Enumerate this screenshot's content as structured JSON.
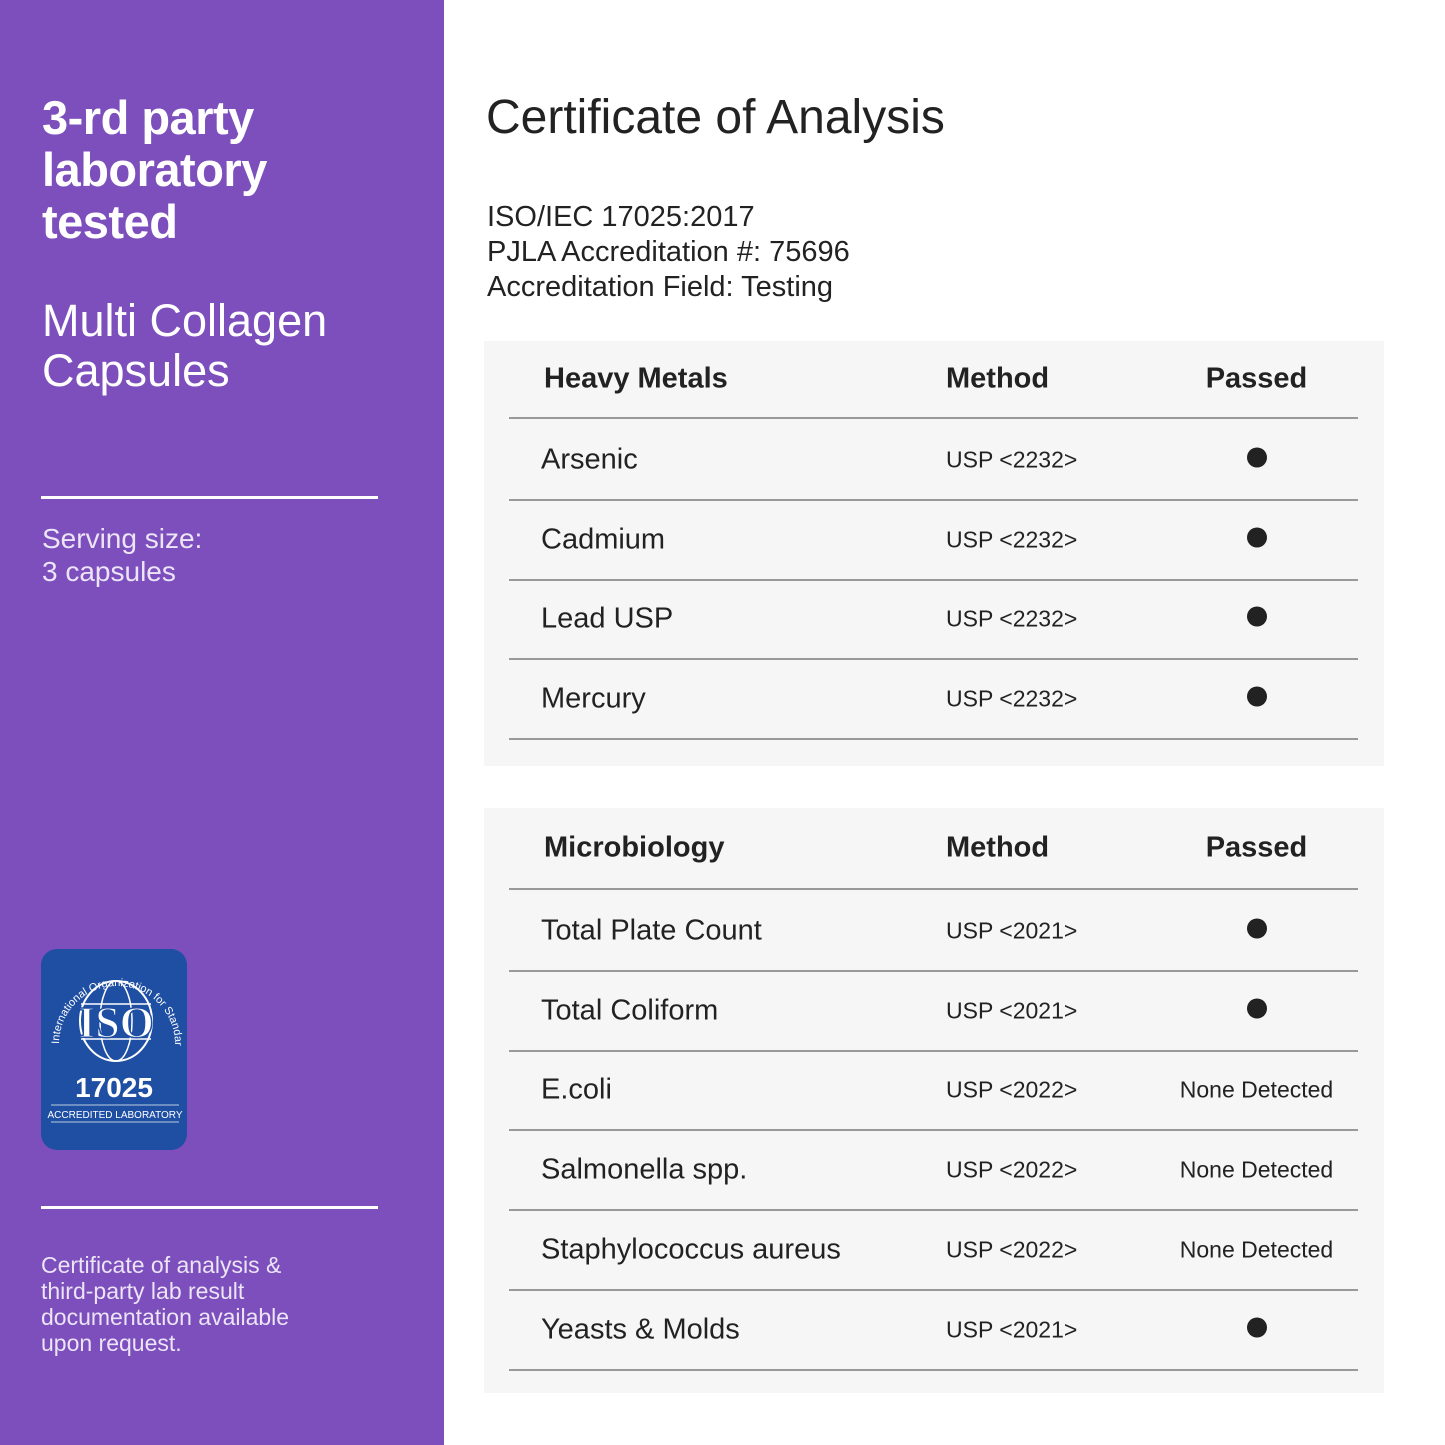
{
  "sidebar": {
    "headline": "3-rd party laboratory tested",
    "product": "Multi Collagen Capsules",
    "serving_label": "Serving size:",
    "serving_value": "3 capsules",
    "footer": "Certificate of analysis & third-party lab result documentation available upon request.",
    "badge": {
      "ring_text": "International Organization for Standardization",
      "logo": "ISO",
      "number": "17025",
      "caption": "ACCREDITED LABORATORY"
    }
  },
  "main": {
    "title": "Certificate of Analysis",
    "accreditation": [
      "ISO/IEC 17025:2017",
      "PJLA Accreditation #: 75696",
      "Accreditation Field: Testing"
    ],
    "tables": [
      {
        "headers": [
          "Heavy Metals",
          "Method",
          "Passed"
        ],
        "rows": [
          {
            "name": "Arsenic",
            "method": "USP <2232>",
            "result": "passed-dot"
          },
          {
            "name": "Cadmium",
            "method": "USP <2232>",
            "result": "passed-dot"
          },
          {
            "name": "Lead USP",
            "method": "USP <2232>",
            "result": "passed-dot"
          },
          {
            "name": "Mercury",
            "method": "USP <2232>",
            "result": "passed-dot"
          }
        ]
      },
      {
        "headers": [
          "Microbiology",
          "Method",
          "Passed"
        ],
        "rows": [
          {
            "name": "Total Plate Count",
            "method": "USP <2021>",
            "result": "passed-dot"
          },
          {
            "name": "Total Coliform",
            "method": "USP <2021>",
            "result": "passed-dot"
          },
          {
            "name": "E.coli",
            "method": "USP <2022>",
            "result": "None Detected"
          },
          {
            "name": "Salmonella spp.",
            "method": "USP <2022>",
            "result": "None Detected"
          },
          {
            "name": "Staphylococcus aureus",
            "method": "USP <2022>",
            "result": "None Detected"
          },
          {
            "name": "Yeasts & Molds",
            "method": "USP <2021>",
            "result": "passed-dot"
          }
        ]
      }
    ]
  },
  "colors": {
    "sidebar": "#7c4fbc",
    "badge": "#1f4fa3",
    "table_bg": "#f6f6f6"
  }
}
